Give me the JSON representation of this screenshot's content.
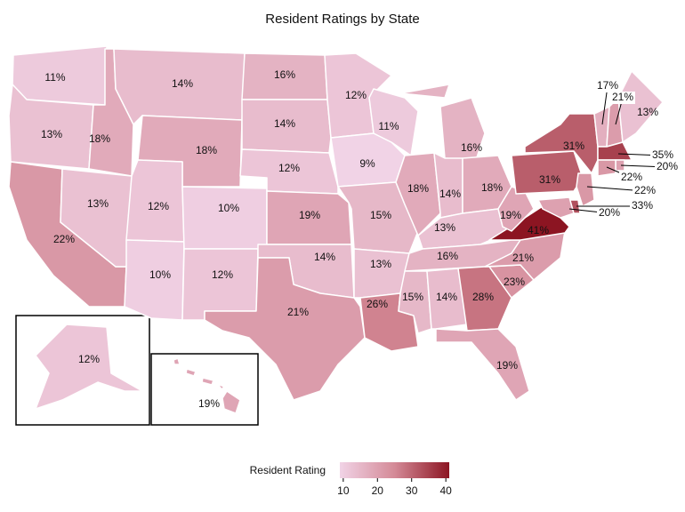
{
  "chart_data": {
    "type": "choropleth",
    "title": "Resident Ratings by State",
    "values": [
      11,
      13,
      22,
      18,
      13,
      14,
      18,
      12,
      10,
      10,
      12,
      16,
      14,
      12,
      19,
      14,
      21,
      12,
      9,
      15,
      13,
      26,
      11,
      18,
      16,
      14,
      18,
      13,
      16,
      15,
      14,
      28,
      19,
      23,
      21,
      41,
      19,
      31,
      31,
      17,
      21,
      13,
      35,
      20,
      22,
      22,
      33,
      20,
      12,
      19
    ],
    "value_labels": [
      "11%",
      "13%",
      "22%",
      "18%",
      "13%",
      "14%",
      "18%",
      "12%",
      "10%",
      "10%",
      "12%",
      "16%",
      "14%",
      "12%",
      "19%",
      "14%",
      "21%",
      "12%",
      "9%",
      "15%",
      "13%",
      "26%",
      "11%",
      "18%",
      "16%",
      "14%",
      "18%",
      "13%",
      "16%",
      "15%",
      "14%",
      "28%",
      "19%",
      "23%",
      "21%",
      "41%",
      "19%",
      "31%",
      "31%",
      "17%",
      "21%",
      "13%",
      "35%",
      "20%",
      "22%",
      "22%",
      "33%",
      "20%",
      "12%",
      "19%"
    ],
    "colorbar_title": "Resident Rating",
    "clim": [
      9,
      41
    ],
    "cticks": [
      10,
      20,
      30,
      40
    ],
    "colors": [
      "#f1d3e6",
      "#d48a97",
      "#8c1522"
    ]
  }
}
